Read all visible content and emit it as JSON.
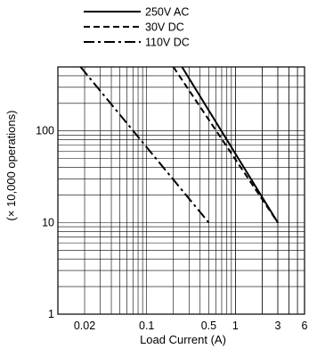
{
  "chart_data": {
    "type": "line",
    "title": "",
    "xlabel": "Load Current (A)",
    "ylabel": "(× 10,000 operations)",
    "xscale": "log",
    "yscale": "log",
    "xlim": [
      0.01,
      6
    ],
    "ylim": [
      1,
      500
    ],
    "grid": true,
    "legend_position": "top",
    "x_tick_labels": [
      {
        "value": 0.02,
        "label": "0.02"
      },
      {
        "value": 0.1,
        "label": "0.1"
      },
      {
        "value": 0.5,
        "label": "0.5"
      },
      {
        "value": 1,
        "label": "1"
      },
      {
        "value": 3,
        "label": "3"
      },
      {
        "value": 6,
        "label": "6"
      }
    ],
    "y_tick_labels": [
      {
        "value": 1,
        "label": "1"
      },
      {
        "value": 10,
        "label": "10"
      },
      {
        "value": 100,
        "label": "100"
      }
    ],
    "series": [
      {
        "name": "250V AC",
        "style": "solid",
        "points": [
          {
            "x": 0.25,
            "y": 500
          },
          {
            "x": 3,
            "y": 10
          }
        ]
      },
      {
        "name": "30V DC",
        "style": "dashed",
        "points": [
          {
            "x": 0.2,
            "y": 500
          },
          {
            "x": 3,
            "y": 10
          }
        ]
      },
      {
        "name": "110V DC",
        "style": "dashdot",
        "points": [
          {
            "x": 0.018,
            "y": 500
          },
          {
            "x": 0.5,
            "y": 10
          }
        ]
      }
    ]
  }
}
